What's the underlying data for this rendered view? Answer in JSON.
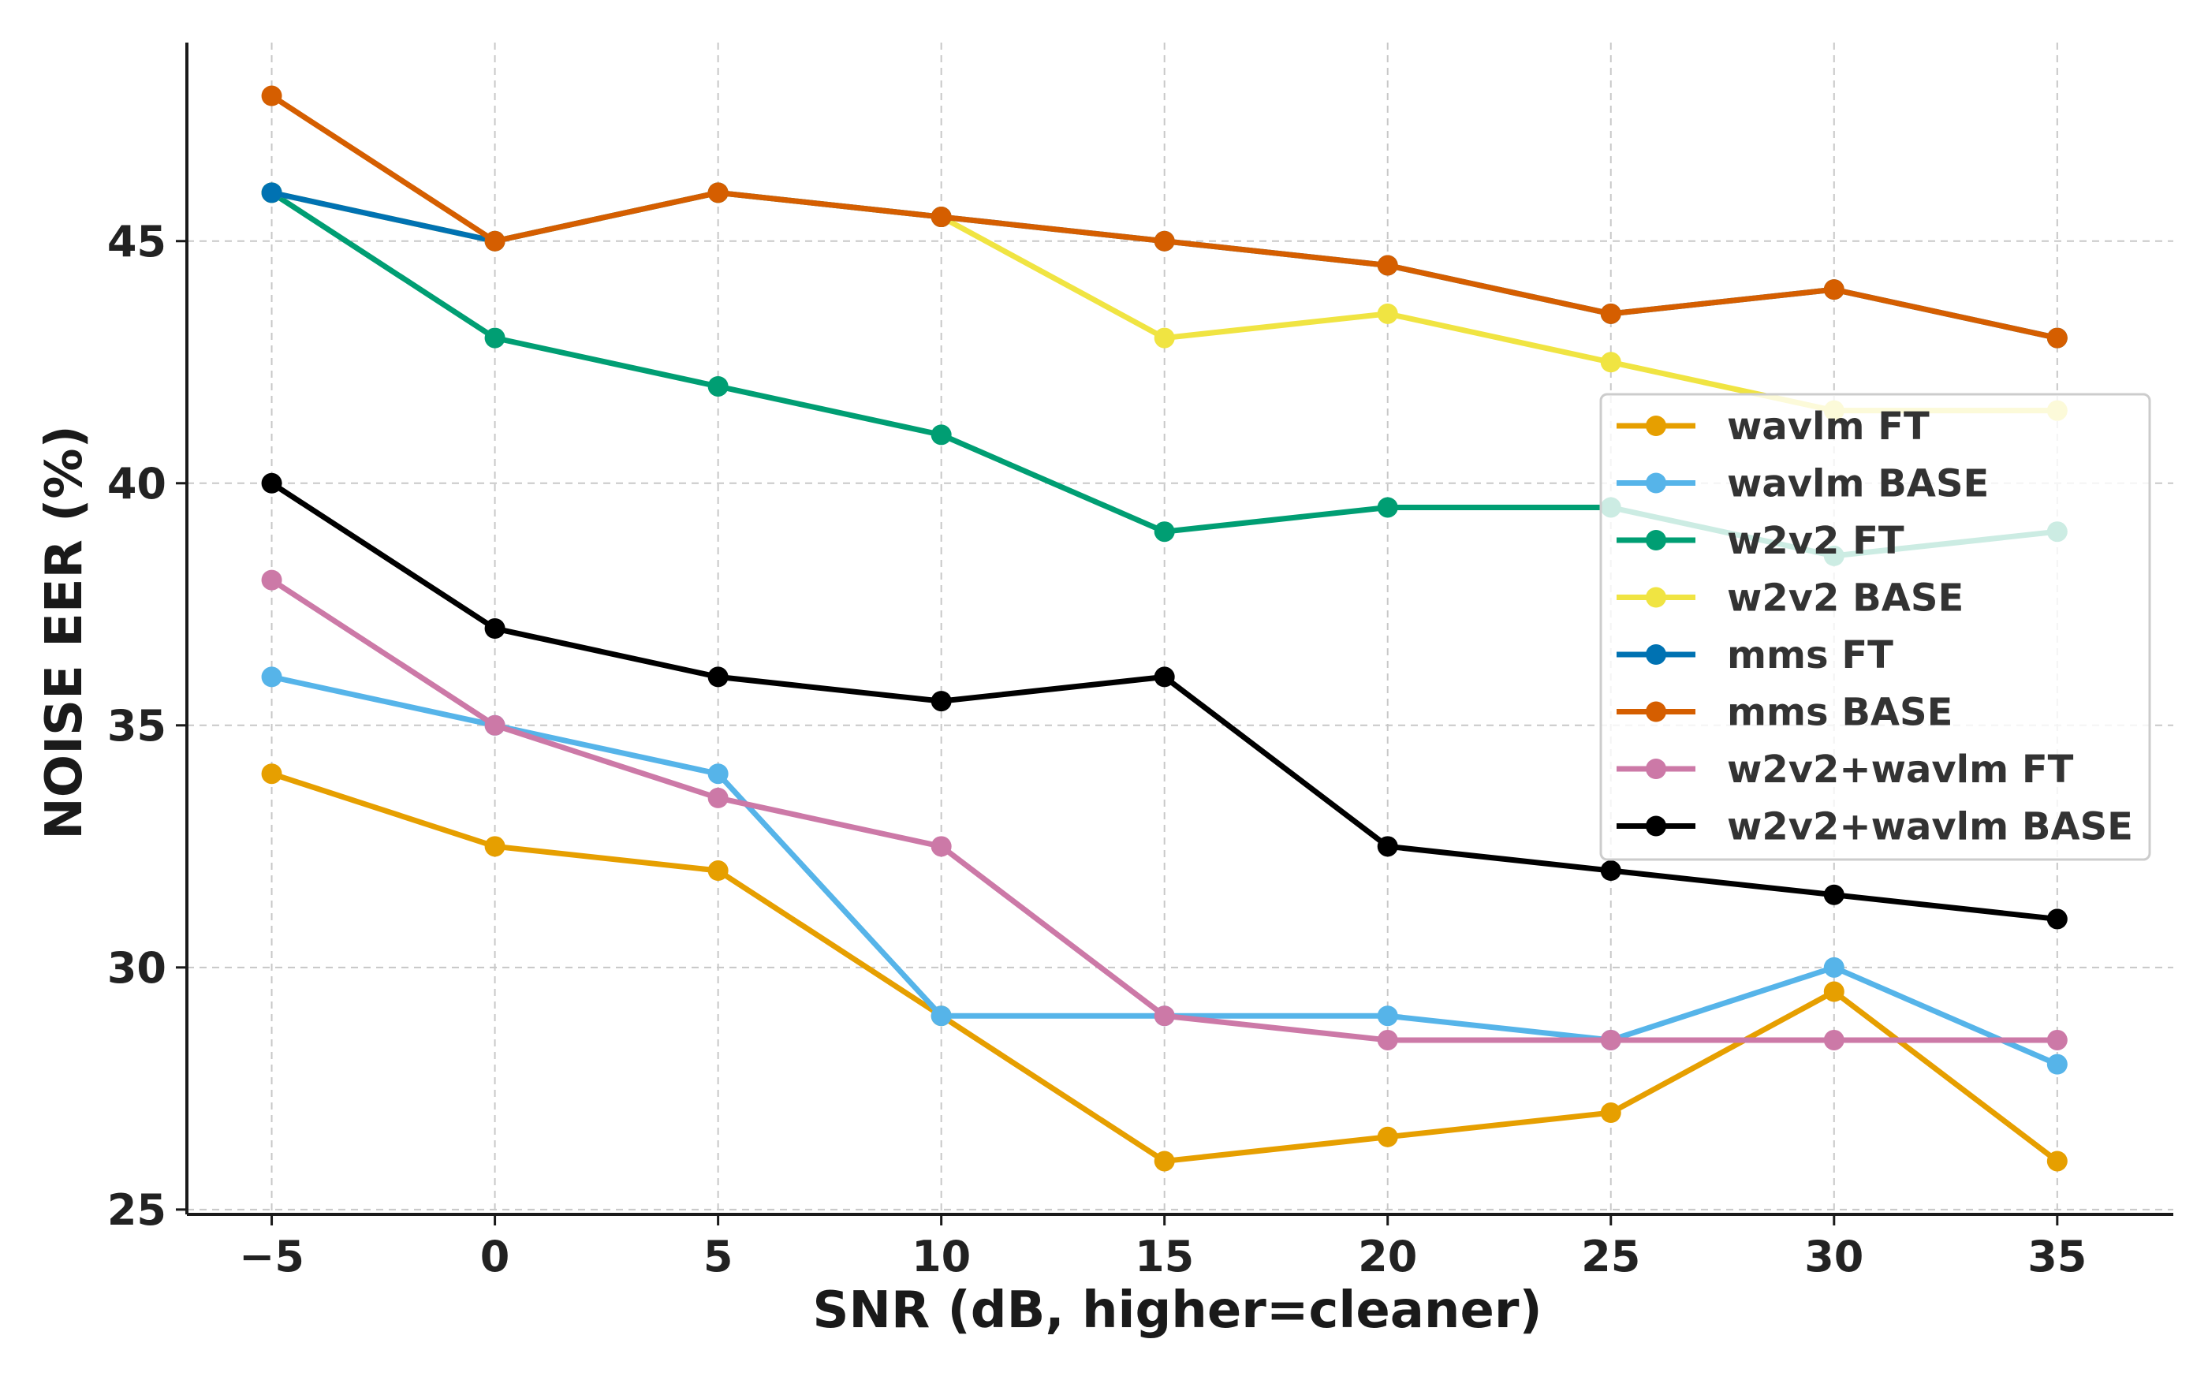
{
  "chart_data": {
    "type": "line",
    "title": "",
    "xlabel": "SNR (dB, higher=cleaner)",
    "ylabel": "NOISE EER (%)",
    "x": [
      -5,
      0,
      5,
      10,
      15,
      20,
      25,
      30,
      35
    ],
    "x_tick_labels": [
      "−5",
      "0",
      "5",
      "10",
      "15",
      "20",
      "25",
      "30",
      "35"
    ],
    "y_ticks": [
      25,
      30,
      35,
      40,
      45
    ],
    "xlim": [
      -6.9,
      37.6
    ],
    "ylim": [
      24.9,
      49.1
    ],
    "grid": true,
    "legend_position": "right",
    "series": [
      {
        "name": "wavlm FT",
        "color": "#E69F00",
        "values": [
          34,
          32.5,
          32,
          29,
          26,
          26.5,
          27,
          29.5,
          26
        ]
      },
      {
        "name": "wavlm BASE",
        "color": "#56B4E9",
        "values": [
          36,
          35,
          34,
          29,
          29,
          29,
          28.5,
          30,
          28
        ]
      },
      {
        "name": "w2v2 FT",
        "color": "#009E73",
        "values": [
          46,
          43,
          42,
          41,
          39,
          39.5,
          39.5,
          38.5,
          39
        ]
      },
      {
        "name": "w2v2 BASE",
        "color": "#F0E442",
        "values": [
          46,
          45,
          46,
          45.5,
          43,
          43.5,
          42.5,
          41.5,
          41.5
        ]
      },
      {
        "name": "mms FT",
        "color": "#0072B2",
        "values": [
          46,
          45,
          46,
          45.5,
          45,
          44.5,
          43.5,
          44,
          43
        ]
      },
      {
        "name": "mms BASE",
        "color": "#D55E00",
        "values": [
          48,
          45,
          46,
          45.5,
          45,
          44.5,
          43.5,
          44,
          43
        ]
      },
      {
        "name": "w2v2+wavlm FT",
        "color": "#CC79A7",
        "values": [
          38,
          35,
          33.5,
          32.5,
          29,
          28.5,
          28.5,
          28.5,
          28.5
        ]
      },
      {
        "name": "w2v2+wavlm BASE",
        "color": "#000000",
        "values": [
          40,
          37,
          36,
          35.5,
          36,
          32.5,
          32,
          31.5,
          31
        ]
      }
    ]
  }
}
